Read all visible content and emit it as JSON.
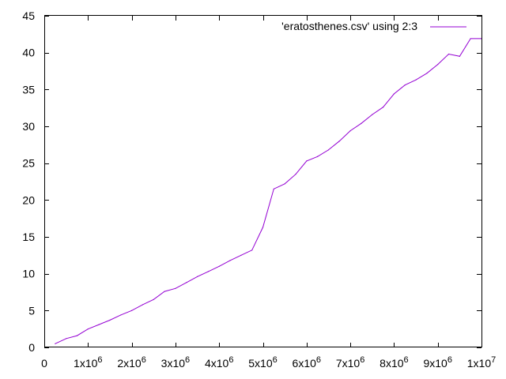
{
  "chart_data": {
    "type": "line",
    "grid": false,
    "legend_position": "top-right",
    "xlim": [
      0,
      10000000
    ],
    "ylim": [
      0,
      45
    ],
    "x_ticks": [
      {
        "value": 0,
        "label": "0",
        "mantissa": "",
        "exp": ""
      },
      {
        "value": 1000000,
        "label": "",
        "mantissa": "1x10",
        "exp": "6"
      },
      {
        "value": 2000000,
        "label": "",
        "mantissa": "2x10",
        "exp": "6"
      },
      {
        "value": 3000000,
        "label": "",
        "mantissa": "3x10",
        "exp": "6"
      },
      {
        "value": 4000000,
        "label": "",
        "mantissa": "4x10",
        "exp": "6"
      },
      {
        "value": 5000000,
        "label": "",
        "mantissa": "5x10",
        "exp": "6"
      },
      {
        "value": 6000000,
        "label": "",
        "mantissa": "6x10",
        "exp": "6"
      },
      {
        "value": 7000000,
        "label": "",
        "mantissa": "7x10",
        "exp": "6"
      },
      {
        "value": 8000000,
        "label": "",
        "mantissa": "8x10",
        "exp": "6"
      },
      {
        "value": 9000000,
        "label": "",
        "mantissa": "9x10",
        "exp": "6"
      },
      {
        "value": 10000000,
        "label": "",
        "mantissa": "1x10",
        "exp": "7"
      }
    ],
    "y_ticks": [
      {
        "value": 0,
        "label": "0"
      },
      {
        "value": 5,
        "label": "5"
      },
      {
        "value": 10,
        "label": "10"
      },
      {
        "value": 15,
        "label": "15"
      },
      {
        "value": 20,
        "label": "20"
      },
      {
        "value": 25,
        "label": "25"
      },
      {
        "value": 30,
        "label": "30"
      },
      {
        "value": 35,
        "label": "35"
      },
      {
        "value": 40,
        "label": "40"
      },
      {
        "value": 45,
        "label": "45"
      }
    ],
    "series": [
      {
        "name": "'eratosthenes.csv' using 2:3",
        "color": "#9400d3",
        "x": [
          250000,
          500000,
          750000,
          1000000,
          1250000,
          1500000,
          1750000,
          2000000,
          2250000,
          2500000,
          2750000,
          3000000,
          3250000,
          3500000,
          3750000,
          4000000,
          4250000,
          4500000,
          4750000,
          5000000,
          5250000,
          5500000,
          5750000,
          6000000,
          6250000,
          6500000,
          6750000,
          7000000,
          7250000,
          7500000,
          7750000,
          8000000,
          8250000,
          8500000,
          8750000,
          9000000,
          9250000,
          9500000,
          9750000,
          10000000
        ],
        "y": [
          0.5,
          1.2,
          1.6,
          2.5,
          3.1,
          3.7,
          4.4,
          5.0,
          5.8,
          6.5,
          7.6,
          8.0,
          8.8,
          9.6,
          10.3,
          11.0,
          11.8,
          12.5,
          13.2,
          16.3,
          21.5,
          22.2,
          23.5,
          25.3,
          25.9,
          26.8,
          28.0,
          29.4,
          30.4,
          31.6,
          32.6,
          34.4,
          35.6,
          36.3,
          37.2,
          38.4,
          39.8,
          39.5,
          41.9,
          41.9
        ]
      }
    ]
  }
}
